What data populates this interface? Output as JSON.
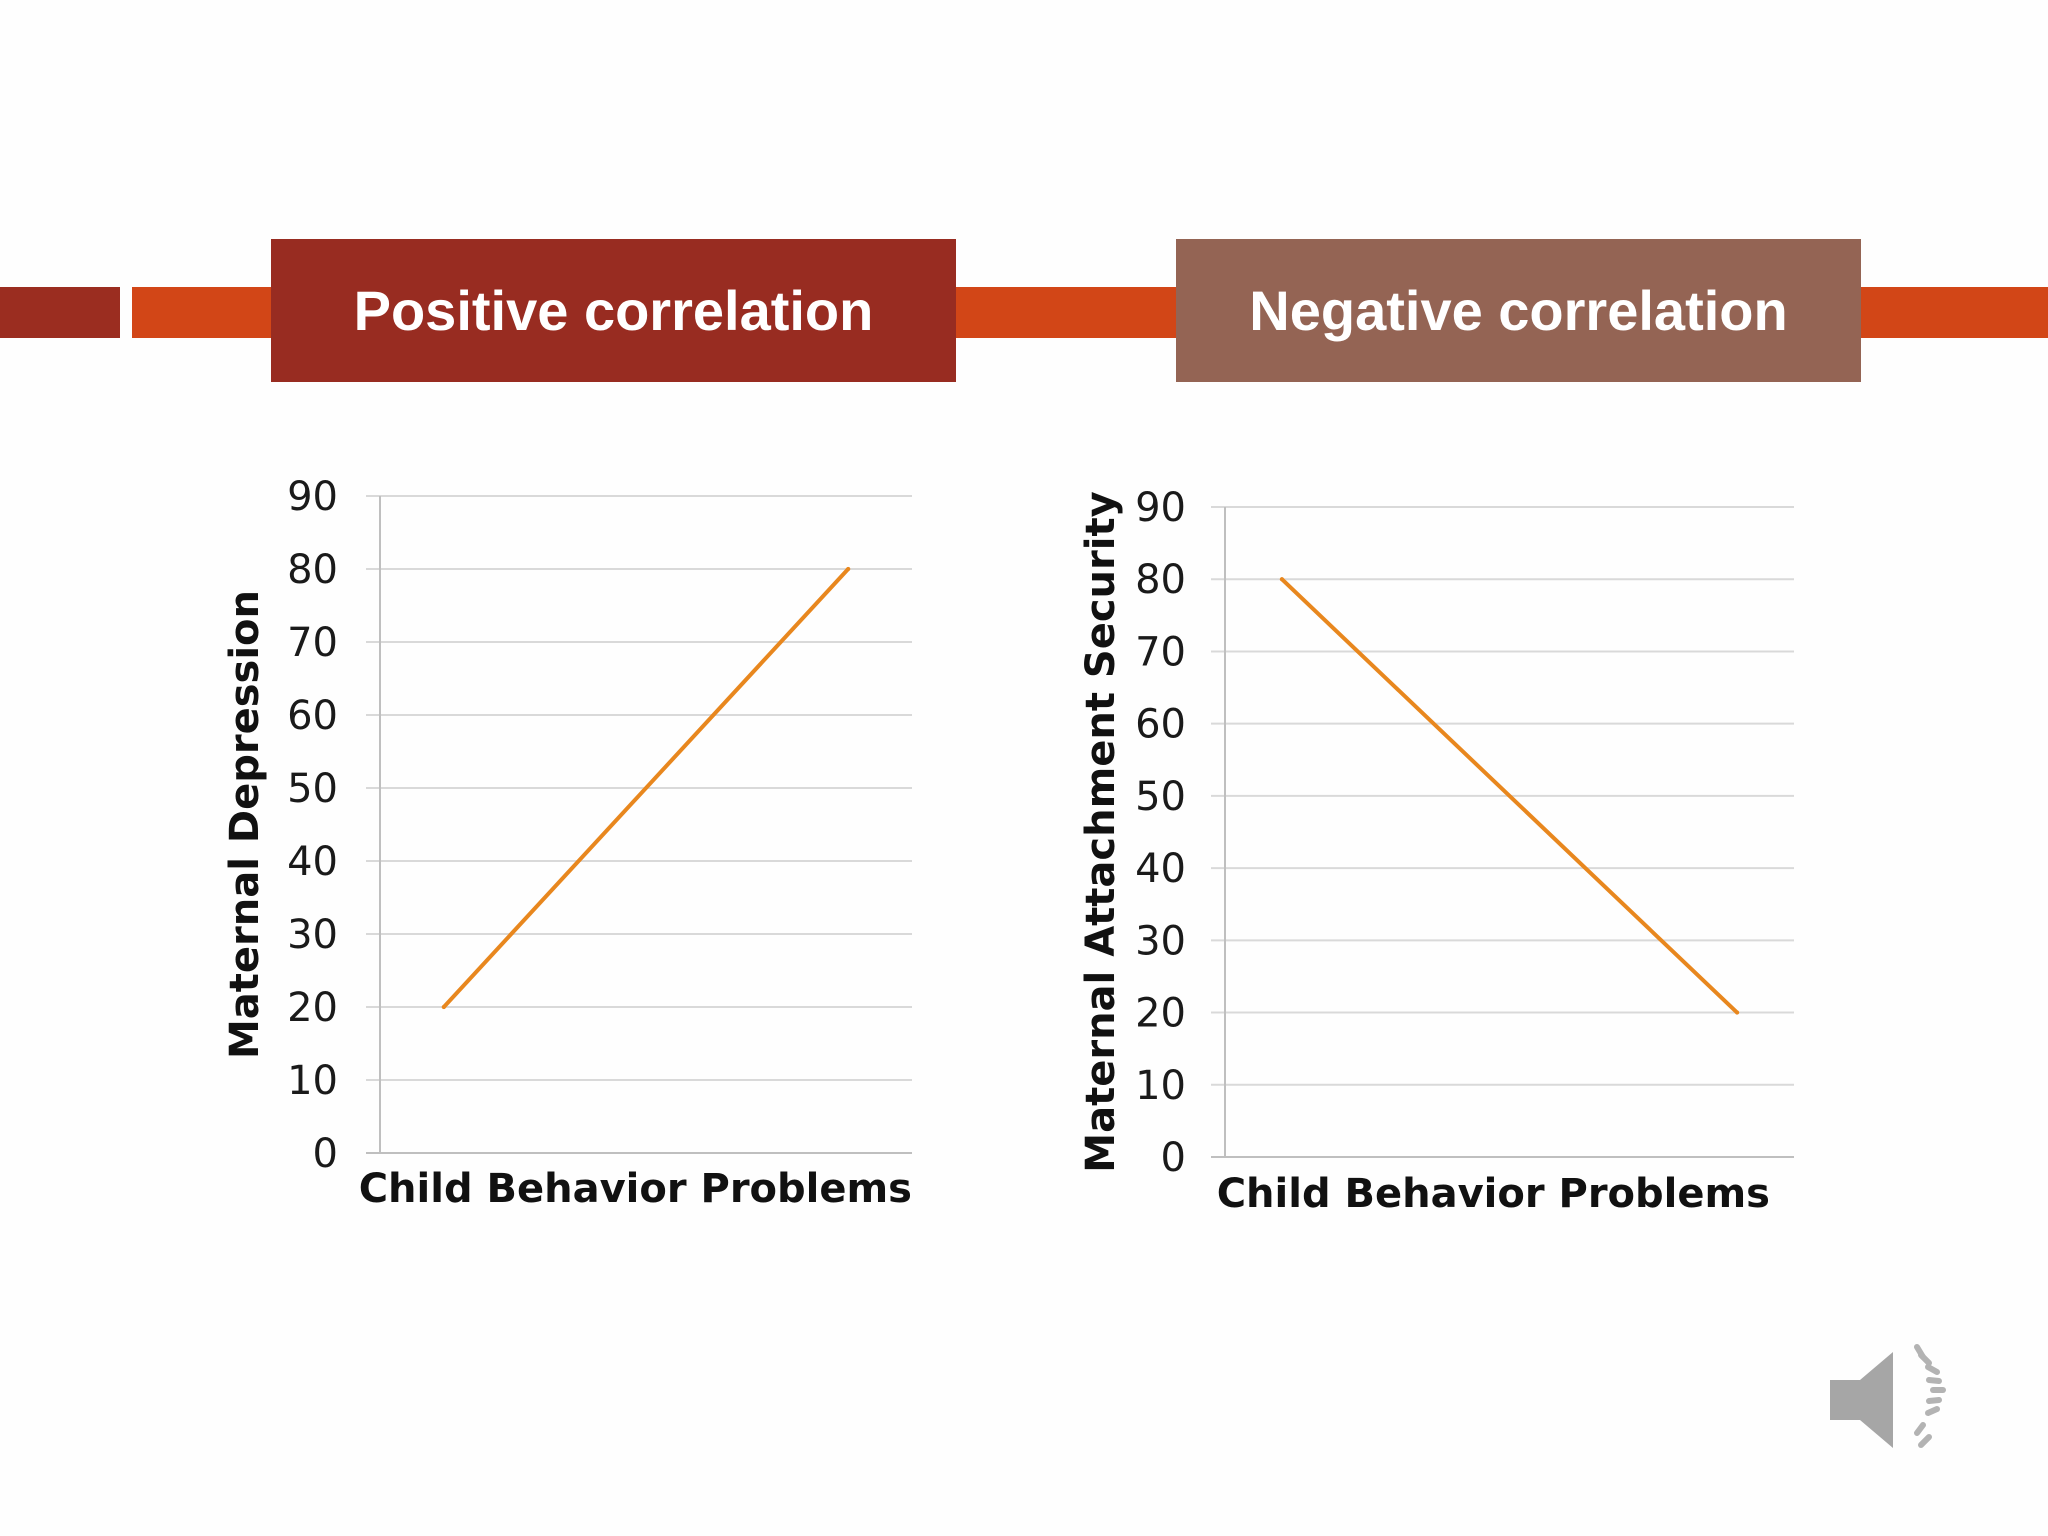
{
  "header": {
    "positive_label": "Positive correlation",
    "negative_label": "Negative correlation"
  },
  "colors": {
    "band_left": "#9b2d20",
    "band_main": "#d24617",
    "positive_box": "#982c21",
    "negative_box": "#946454",
    "series_line": "#e8871e",
    "gridline": "#d9d9d9",
    "axis": "#bfbfbf",
    "speaker": "#a6a6a6"
  },
  "speaker_icon": "speaker-icon",
  "chart_data": [
    {
      "type": "line",
      "title": "Positive correlation",
      "xlabel": "Child Behavior Problems",
      "ylabel": "Maternal Depression",
      "ylim": [
        0,
        90
      ],
      "yticks": [
        "0",
        "10",
        "20",
        "30",
        "40",
        "50",
        "60",
        "70",
        "80",
        "90"
      ],
      "grid": true,
      "series": [
        {
          "x": [
            1,
            2
          ],
          "values": [
            20,
            80
          ]
        }
      ]
    },
    {
      "type": "line",
      "title": "Negative correlation",
      "xlabel": "Child Behavior Problems",
      "ylabel": "Maternal Attachment Security",
      "ylim": [
        0,
        90
      ],
      "yticks": [
        "0",
        "10",
        "20",
        "30",
        "40",
        "50",
        "60",
        "70",
        "80",
        "90"
      ],
      "grid": true,
      "series": [
        {
          "x": [
            1,
            2
          ],
          "values": [
            80,
            20
          ]
        }
      ]
    }
  ]
}
